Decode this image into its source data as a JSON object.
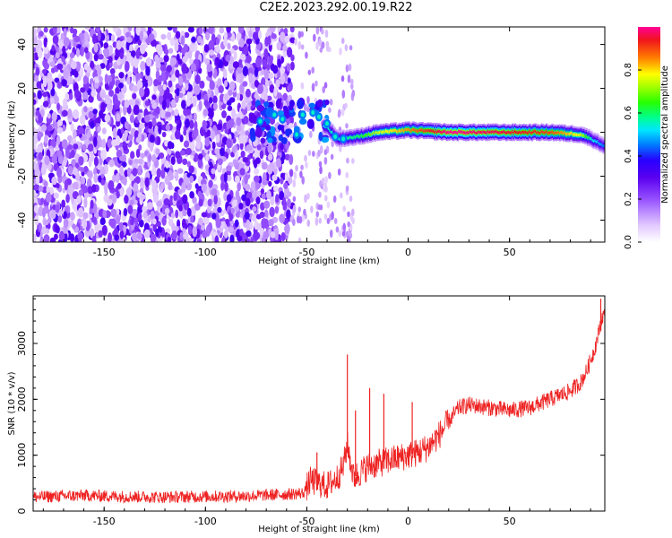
{
  "title": "C2E2.2023.292.00.19.R22",
  "colors": {
    "snr_line": "#ee2222",
    "axes": "#000000",
    "background": "#ffffff"
  },
  "chart_data": [
    {
      "type": "heatmap",
      "xlabel": "Height of straight line (km)",
      "ylabel": "Frequency (Hz)",
      "xlim": [
        -185,
        97
      ],
      "ylim": [
        -50,
        48
      ],
      "xticks": [
        -150,
        -100,
        -50,
        0,
        50
      ],
      "yticks": [
        -40,
        -20,
        0,
        20,
        40
      ],
      "colorbar": {
        "label": "Normalized spectral amplitude",
        "range": [
          0,
          1
        ],
        "ticks": [
          0.0,
          0.2,
          0.4,
          0.6,
          0.8
        ],
        "colormap": "rainbow-white"
      },
      "ridge": [
        {
          "x": -75,
          "y": 5,
          "amp": 0.45
        },
        {
          "x": -60,
          "y": 7,
          "amp": 0.5
        },
        {
          "x": -55,
          "y": -1,
          "amp": 0.5
        },
        {
          "x": -45,
          "y": 5,
          "amp": 0.45
        },
        {
          "x": -40,
          "y": 2,
          "amp": 0.5
        },
        {
          "x": -35,
          "y": -3,
          "amp": 0.5
        },
        {
          "x": -25,
          "y": -2,
          "amp": 0.55
        },
        {
          "x": -15,
          "y": 0,
          "amp": 0.7
        },
        {
          "x": 0,
          "y": 1,
          "amp": 0.8
        },
        {
          "x": 20,
          "y": 0,
          "amp": 0.95
        },
        {
          "x": 50,
          "y": 0,
          "amp": 0.9
        },
        {
          "x": 70,
          "y": 0,
          "amp": 0.85
        },
        {
          "x": 85,
          "y": -1,
          "amp": 0.7
        },
        {
          "x": 90,
          "y": -3,
          "amp": 0.5
        },
        {
          "x": 96,
          "y": -6,
          "amp": 0.4
        }
      ],
      "noise_region_x": [
        -185,
        -57
      ]
    },
    {
      "type": "line",
      "xlabel": "Height of straight line (km)",
      "ylabel": "SNR (10 * v/v)",
      "xlim": [
        -185,
        97
      ],
      "ylim": [
        0,
        3850
      ],
      "xticks": [
        -150,
        -100,
        -50,
        0,
        50
      ],
      "yticks": [
        0,
        1000,
        2000,
        3000
      ],
      "series": [
        {
          "x": [
            -185,
            -160,
            -140,
            -120,
            -100,
            -80,
            -60,
            -52,
            -48,
            -45,
            -40,
            -35,
            -32,
            -30,
            -29,
            -27,
            -25,
            -20,
            -15,
            -10,
            -5,
            0,
            5,
            10,
            15,
            20,
            25,
            30,
            40,
            50,
            60,
            70,
            80,
            85,
            88,
            90,
            92,
            94,
            96
          ],
          "y": [
            250,
            280,
            260,
            250,
            260,
            270,
            300,
            320,
            550,
            500,
            450,
            600,
            800,
            1200,
            1000,
            600,
            650,
            800,
            850,
            900,
            950,
            1000,
            1050,
            1150,
            1350,
            1600,
            1850,
            1900,
            1850,
            1800,
            1850,
            2000,
            2150,
            2300,
            2500,
            2700,
            2900,
            3200,
            3500
          ]
        }
      ],
      "spikes": [
        {
          "x": -30,
          "y": 2800
        },
        {
          "x": -19,
          "y": 2200
        },
        {
          "x": -12,
          "y": 2100
        },
        {
          "x": -26,
          "y": 1800
        },
        {
          "x": -45,
          "y": 1050
        },
        {
          "x": 2,
          "y": 1950
        },
        {
          "x": 95,
          "y": 3800
        }
      ]
    }
  ]
}
